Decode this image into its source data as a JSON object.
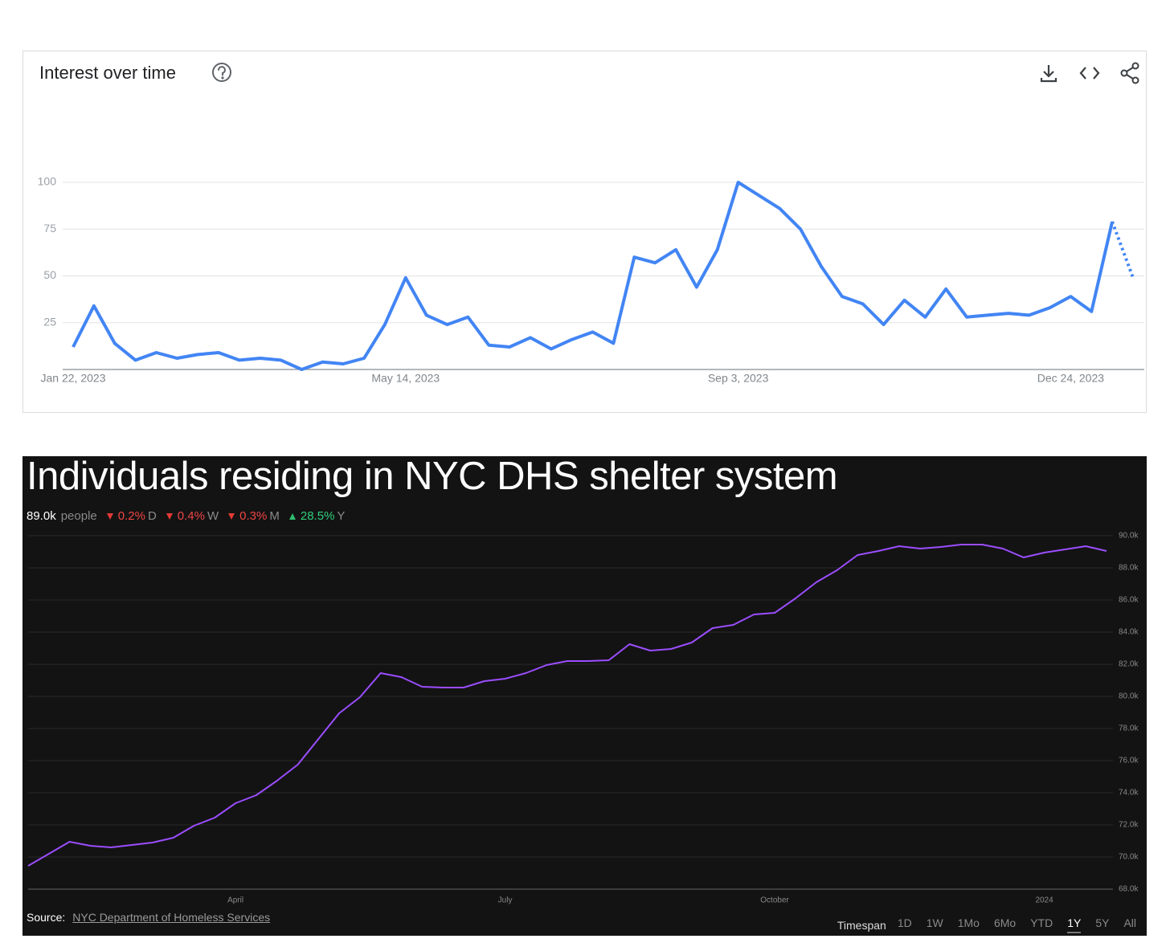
{
  "chart_data": [
    {
      "type": "line",
      "title": "Interest over time",
      "categories": [
        "Jan 22, 2023",
        null,
        null,
        null,
        null,
        null,
        null,
        null,
        null,
        null,
        null,
        null,
        null,
        null,
        null,
        null,
        "May 14, 2023",
        null,
        null,
        null,
        null,
        null,
        null,
        null,
        null,
        null,
        null,
        null,
        null,
        null,
        null,
        null,
        "Sep 3, 2023",
        null,
        null,
        null,
        null,
        null,
        null,
        null,
        null,
        null,
        null,
        null,
        null,
        null,
        null,
        null,
        "Dec 24, 2023",
        null,
        null,
        null
      ],
      "values": [
        12,
        34,
        14,
        5,
        9,
        6,
        8,
        9,
        5,
        6,
        5,
        0,
        4,
        3,
        6,
        24,
        49,
        29,
        24,
        28,
        13,
        12,
        17,
        11,
        16,
        20,
        14,
        60,
        57,
        64,
        44,
        64,
        100,
        93,
        86,
        75,
        55,
        39,
        35,
        24,
        37,
        28,
        43,
        28,
        29,
        30,
        29,
        33,
        39,
        31,
        79,
        49
      ],
      "color": "#4285f4",
      "ylim": [
        0,
        100
      ],
      "yticks": [
        25,
        50,
        75,
        100
      ],
      "grid": true,
      "incomplete_last_point": true
    },
    {
      "type": "line",
      "title": "Individuals residing in NYC DHS shelter system",
      "categories": [
        null,
        null,
        null,
        null,
        null,
        null,
        null,
        null,
        null,
        null,
        "April",
        null,
        null,
        null,
        null,
        null,
        null,
        null,
        null,
        null,
        null,
        null,
        null,
        "July",
        null,
        null,
        null,
        null,
        null,
        null,
        null,
        null,
        null,
        null,
        null,
        null,
        "October",
        null,
        null,
        null,
        null,
        null,
        null,
        null,
        null,
        null,
        null,
        null,
        null,
        "2024",
        null,
        null,
        null
      ],
      "values": [
        69450,
        70200,
        70950,
        70700,
        70600,
        70750,
        70900,
        71200,
        71950,
        72450,
        73350,
        73850,
        74750,
        75750,
        77350,
        78950,
        79950,
        81450,
        81200,
        80600,
        80550,
        80550,
        80950,
        81100,
        81450,
        81950,
        82200,
        82200,
        82250,
        83250,
        82850,
        82950,
        83350,
        84250,
        84450,
        85100,
        85200,
        86100,
        87100,
        87850,
        88800,
        89050,
        89350,
        89200,
        89300,
        89450,
        89450,
        89200,
        88650,
        88950,
        89150,
        89350,
        89050
      ],
      "color": "#9b4dff",
      "ylim": [
        68000,
        90200
      ],
      "yticks": [
        {
          "value": 68000,
          "label": "68.0k"
        },
        {
          "value": 70000,
          "label": "70.0k"
        },
        {
          "value": 72000,
          "label": "72.0k"
        },
        {
          "value": 74000,
          "label": "74.0k"
        },
        {
          "value": 76000,
          "label": "76.0k"
        },
        {
          "value": 78000,
          "label": "78.0k"
        },
        {
          "value": 80000,
          "label": "80.0k"
        },
        {
          "value": 82000,
          "label": "82.0k"
        },
        {
          "value": 84000,
          "label": "84.0k"
        },
        {
          "value": 86000,
          "label": "86.0k"
        },
        {
          "value": 88000,
          "label": "88.0k"
        },
        {
          "value": 90000,
          "label": "90.0k"
        }
      ],
      "grid": true,
      "y_axis_side": "right",
      "stats": {
        "value": "89.0k",
        "unit": "people",
        "changes": [
          {
            "direction": "down",
            "value": "0.2%",
            "period": "D"
          },
          {
            "direction": "down",
            "value": "0.4%",
            "period": "W"
          },
          {
            "direction": "down",
            "value": "0.3%",
            "period": "M"
          },
          {
            "direction": "up",
            "value": "28.5%",
            "period": "Y"
          }
        ]
      },
      "source_label": "Source:",
      "source": "NYC Department of Homeless Services",
      "timespan": {
        "label": "Timespan",
        "options": [
          "1D",
          "1W",
          "1Mo",
          "6Mo",
          "YTD",
          "1Y",
          "5Y",
          "All"
        ],
        "selected_index": 5
      }
    }
  ]
}
